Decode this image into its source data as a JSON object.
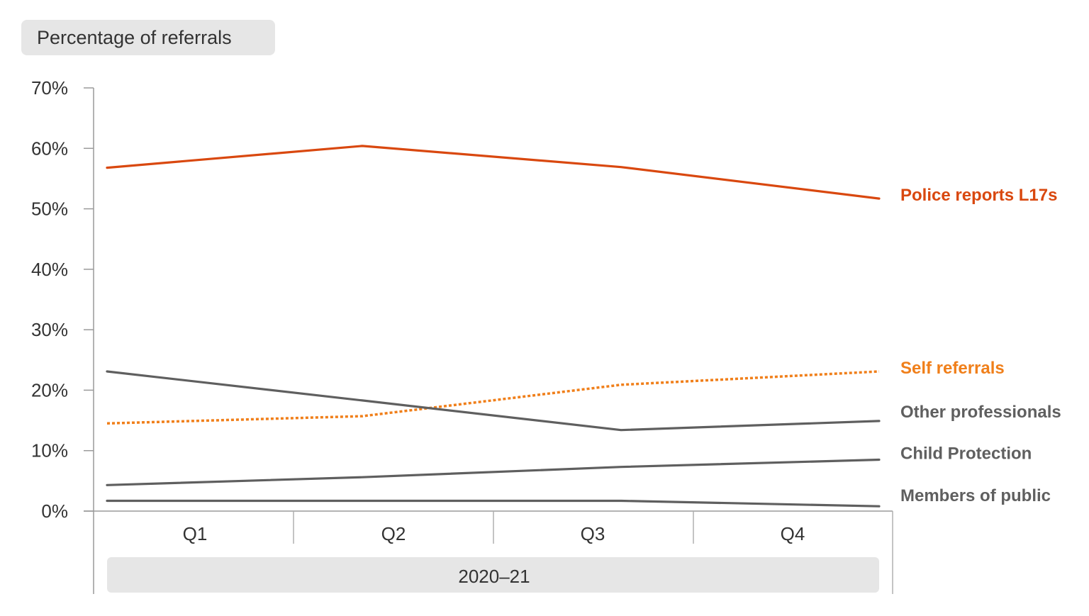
{
  "chart_data": {
    "type": "line",
    "ylabel": "Percentage of referrals",
    "categories": [
      "Q1",
      "Q2",
      "Q3",
      "Q4"
    ],
    "group_label": "2020–21",
    "ylim": [
      0,
      70
    ],
    "yticks": [
      0,
      10,
      20,
      30,
      40,
      50,
      60,
      70
    ],
    "ytick_labels": [
      "0%",
      "10%",
      "20%",
      "30%",
      "40%",
      "50%",
      "60%",
      "70%"
    ],
    "grid": false,
    "legend": "direct labels at right end of each line",
    "series": [
      {
        "name": "Police reports L17s",
        "values": [
          56.8,
          60.4,
          56.9,
          51.7
        ],
        "color": "#d9480f",
        "style": "solid"
      },
      {
        "name": "Self referrals",
        "values": [
          14.5,
          15.7,
          20.9,
          23.1
        ],
        "color": "#f07f1a",
        "style": "dotted"
      },
      {
        "name": "Other professionals",
        "values": [
          23.1,
          18.3,
          13.4,
          14.9
        ],
        "color": "#5f5f5f",
        "style": "solid"
      },
      {
        "name": "Child Protection",
        "values": [
          4.3,
          5.6,
          7.3,
          8.5
        ],
        "color": "#5f5f5f",
        "style": "solid"
      },
      {
        "name": "Members of public",
        "values": [
          1.7,
          1.7,
          1.7,
          0.8
        ],
        "color": "#5f5f5f",
        "style": "solid"
      }
    ]
  }
}
